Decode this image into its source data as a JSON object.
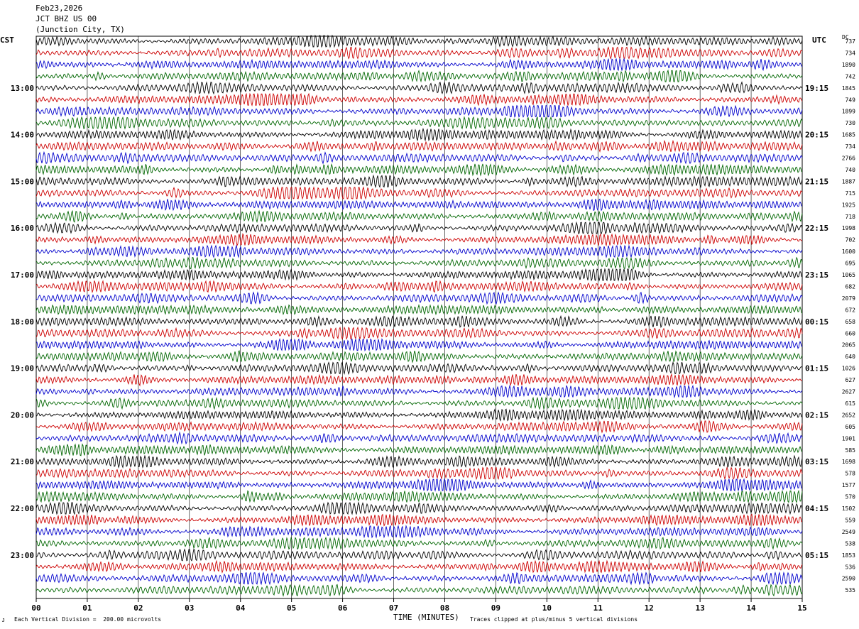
{
  "header": {
    "date": "Feb23,2026",
    "station": "JCT BHZ US 00",
    "location": "(Junction City, TX)"
  },
  "left_tz": "CST",
  "right_tz": "UTC",
  "dc_label": "DC",
  "footer": {
    "scale_note": "Each Vertical Division =  200.00 microvolts",
    "xlabel": "TIME (MINUTES)",
    "clip_note": "Traces clipped at plus/minus 5 vertical divisions"
  },
  "colors": {
    "cycle": [
      "#000000",
      "#cc0000",
      "#0000cc",
      "#006600"
    ],
    "grid": "#000000"
  },
  "chart_data": {
    "type": "line",
    "title": "",
    "xlabel": "TIME (MINUTES)",
    "ylabel": "",
    "x_ticks": [
      "00",
      "01",
      "02",
      "03",
      "04",
      "05",
      "06",
      "07",
      "08",
      "09",
      "10",
      "11",
      "12",
      "13",
      "14",
      "15"
    ],
    "xlim": [
      0,
      15
    ],
    "grid": true,
    "trace_count": 48,
    "left_hour_labels": [
      {
        "trace": 4,
        "label": "13:00"
      },
      {
        "trace": 8,
        "label": "14:00"
      },
      {
        "trace": 12,
        "label": "15:00"
      },
      {
        "trace": 16,
        "label": "16:00"
      },
      {
        "trace": 20,
        "label": "17:00"
      },
      {
        "trace": 24,
        "label": "18:00"
      },
      {
        "trace": 28,
        "label": "19:00"
      },
      {
        "trace": 32,
        "label": "20:00"
      },
      {
        "trace": 36,
        "label": "21:00"
      },
      {
        "trace": 40,
        "label": "22:00"
      },
      {
        "trace": 44,
        "label": "23:00"
      }
    ],
    "right_hour_labels": [
      {
        "trace": 4,
        "label": "19:15"
      },
      {
        "trace": 8,
        "label": "20:15"
      },
      {
        "trace": 12,
        "label": "21:15"
      },
      {
        "trace": 16,
        "label": "22:15"
      },
      {
        "trace": 20,
        "label": "23:15"
      },
      {
        "trace": 24,
        "label": "00:15"
      },
      {
        "trace": 28,
        "label": "01:15"
      },
      {
        "trace": 32,
        "label": "02:15"
      },
      {
        "trace": 36,
        "label": "03:15"
      },
      {
        "trace": 40,
        "label": "04:15"
      },
      {
        "trace": 44,
        "label": "05:15"
      }
    ],
    "dc_offsets": [
      "737",
      "734",
      "1890",
      "742",
      "1845",
      "749",
      "1899",
      "730",
      "1685",
      "734",
      "2766",
      "740",
      "1887",
      "715",
      "1925",
      "718",
      "1998",
      "702",
      "1600",
      "695",
      "1065",
      "682",
      "2079",
      "672",
      "658",
      "660",
      "2065",
      "640",
      "1026",
      "627",
      "2627",
      "615",
      "2652",
      "605",
      "1901",
      "585",
      "1698",
      "578",
      "1577",
      "570",
      "1502",
      "559",
      "2549",
      "538",
      "1853",
      "536",
      "2590",
      "535"
    ]
  }
}
